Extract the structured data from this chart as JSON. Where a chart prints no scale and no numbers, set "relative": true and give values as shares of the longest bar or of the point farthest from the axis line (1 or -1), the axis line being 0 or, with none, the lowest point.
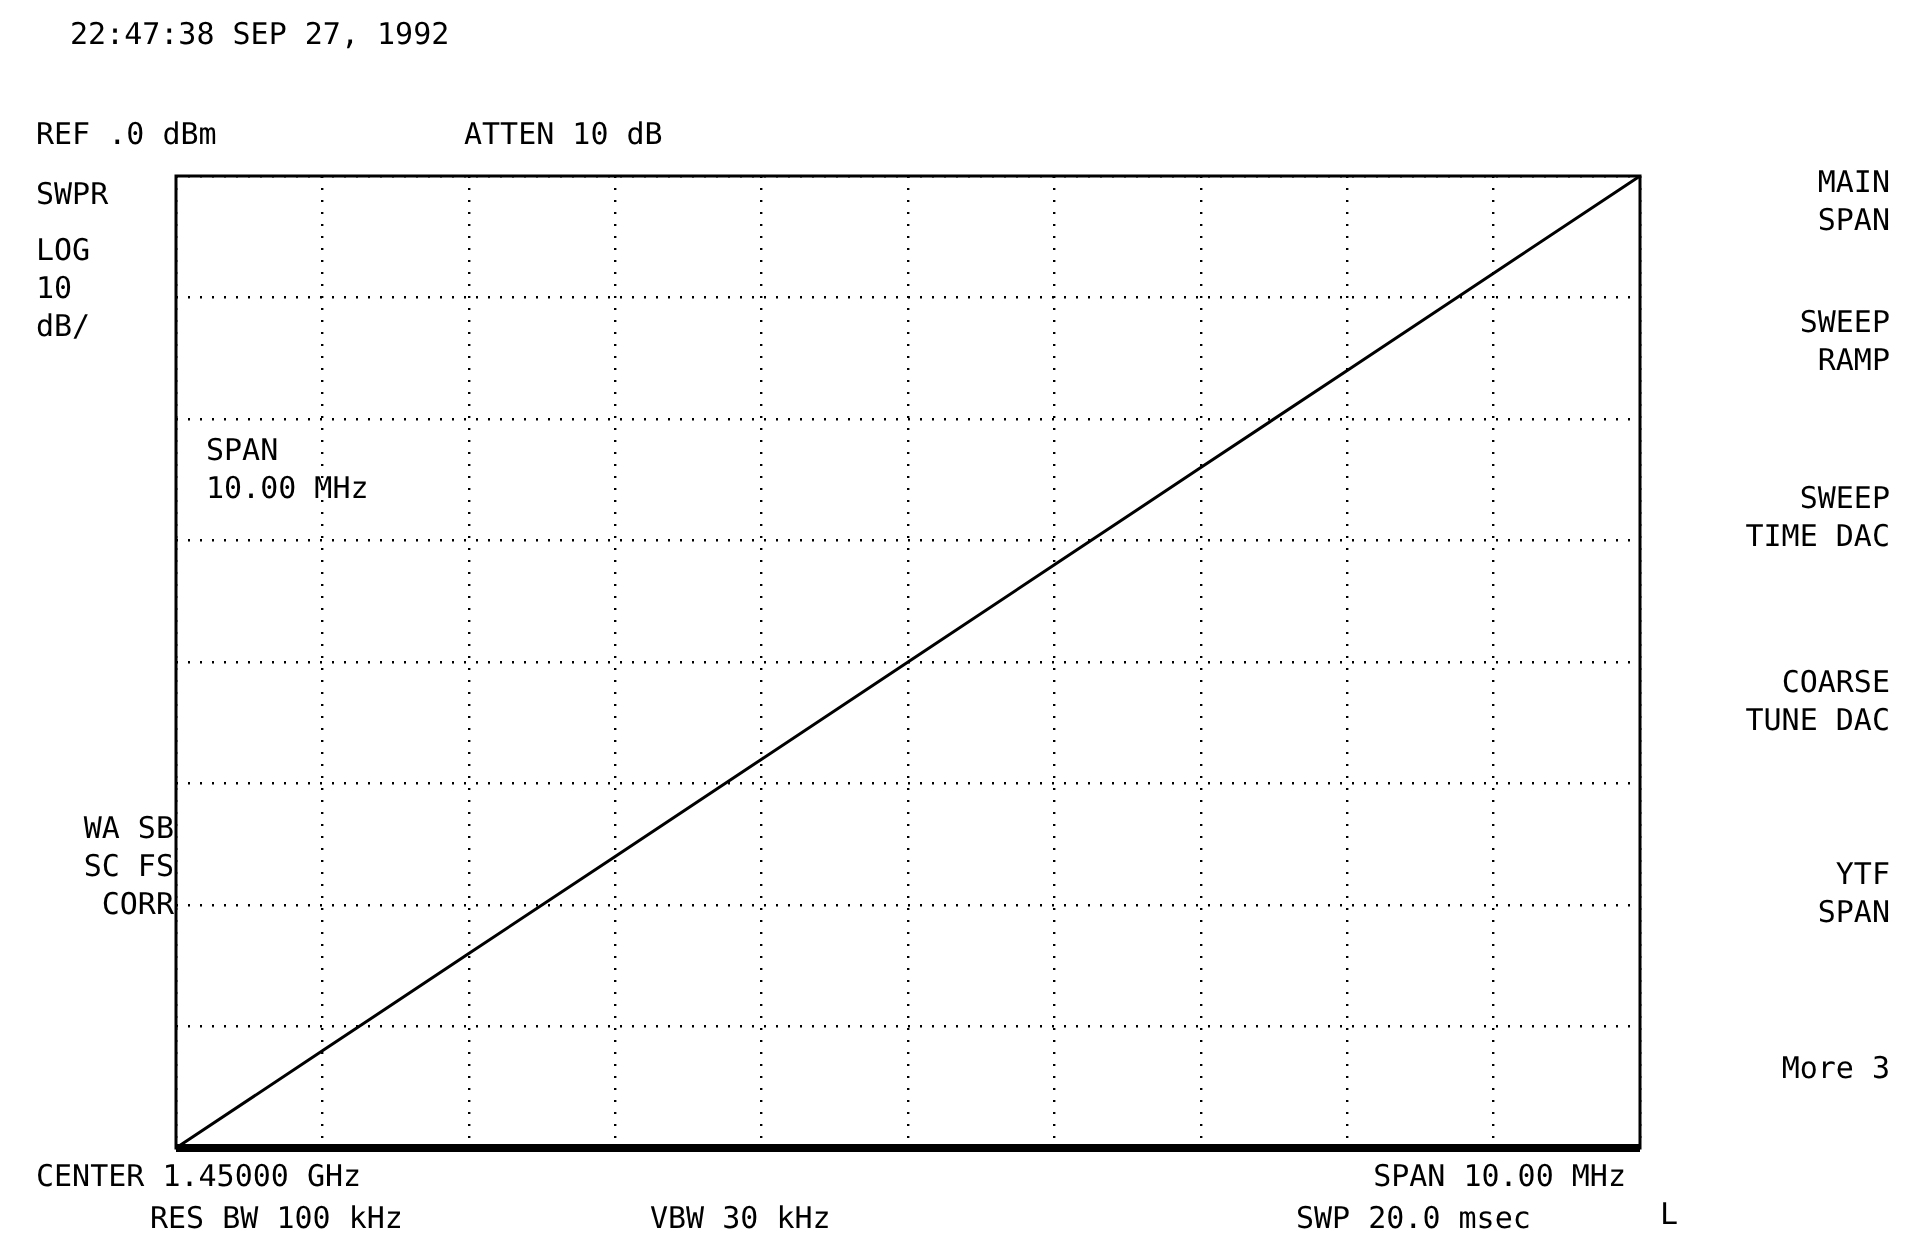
{
  "chart_data": {
    "type": "line",
    "relative": true,
    "grid": true,
    "legend": false,
    "categories": [
      null,
      null,
      null,
      null,
      null,
      null,
      null,
      null,
      null,
      null,
      null
    ],
    "series": [
      {
        "color": "#000000",
        "values": [
          0,
          0.1,
          0.2,
          0.3,
          0.4,
          0.5,
          0.6,
          0.7,
          0.8,
          0.9,
          1
        ]
      }
    ],
    "annotations": [
      "22:47:38 SEP 27, 1992",
      "REF .0 dBm",
      "ATTEN 10 dB",
      "SWPR",
      "LOG\n10\ndB/",
      "SPAN\n10.00 MHz",
      "WA SB\nSC FS\nCORR",
      "CENTER 1.45000 GHz",
      "SPAN 10.00 MHz",
      "RES BW 100 kHz",
      "VBW 30 kHz",
      "SWP 20.0 msec",
      "MAIN\nSPAN",
      "SWEEP\nRAMP",
      "SWEEP\nTIME DAC",
      "COARSE\nTUNE DAC",
      "YTF\nSPAN",
      "More 3",
      "L"
    ]
  }
}
